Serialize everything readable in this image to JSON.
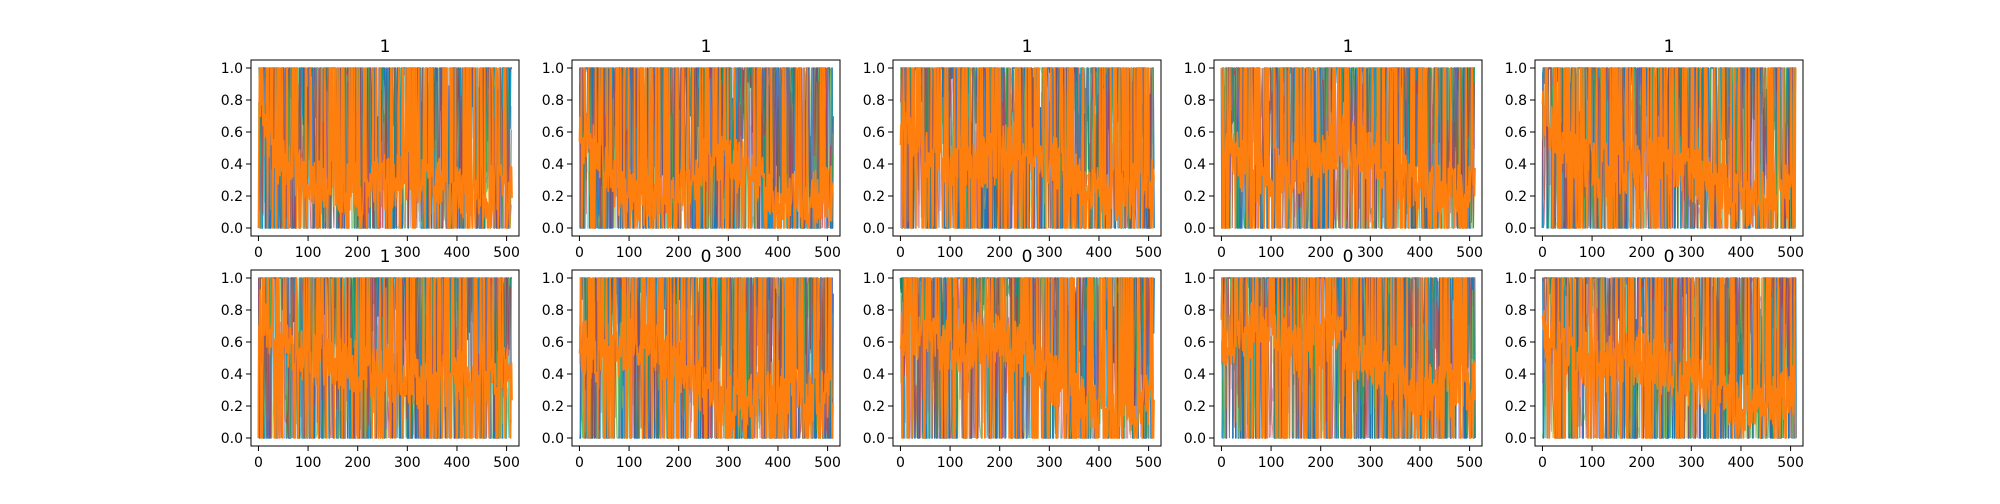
{
  "chart_data": [
    {
      "type": "line",
      "title": "1",
      "xlim": [
        -15,
        525
      ],
      "ylim": [
        -0.05,
        1.05
      ],
      "xticks": [
        "0",
        "100",
        "200",
        "300",
        "400",
        "500"
      ],
      "yticks": [
        "0.0",
        "0.2",
        "0.4",
        "0.6",
        "0.8",
        "1.0"
      ],
      "grid": false,
      "colors": {
        "dominant_a": "#1f77b4",
        "dominant_b": "#ff7f0e",
        "accent": [
          "#17becf",
          "#bcbd22",
          "#2ca02c",
          "#9467bd",
          "#d62728"
        ]
      },
      "profile_b": [
        0.7,
        0.45,
        0.35,
        0.3,
        0.26,
        0.24,
        0.27,
        0.3,
        0.34,
        0.28,
        0.22,
        0.2,
        0.24,
        0.3
      ]
    },
    {
      "type": "line",
      "title": "1",
      "xlim": [
        -15,
        525
      ],
      "ylim": [
        -0.05,
        1.05
      ],
      "xticks": [
        "0",
        "100",
        "200",
        "300",
        "400",
        "500"
      ],
      "yticks": [
        "0.0",
        "0.2",
        "0.4",
        "0.6",
        "0.8",
        "1.0"
      ],
      "grid": false,
      "colors": {
        "dominant_a": "#1f77b4",
        "dominant_b": "#ff7f0e",
        "accent": [
          "#17becf",
          "#bcbd22",
          "#2ca02c",
          "#9467bd",
          "#d62728"
        ]
      },
      "profile_b": [
        0.6,
        0.5,
        0.25,
        0.16,
        0.15,
        0.18,
        0.35,
        0.45,
        0.4,
        0.32,
        0.22,
        0.18,
        0.2,
        0.22
      ]
    },
    {
      "type": "line",
      "title": "1",
      "xlim": [
        -15,
        525
      ],
      "ylim": [
        -0.05,
        1.05
      ],
      "xticks": [
        "0",
        "100",
        "200",
        "300",
        "400",
        "500"
      ],
      "yticks": [
        "0.0",
        "0.2",
        "0.4",
        "0.6",
        "0.8",
        "1.0"
      ],
      "grid": false,
      "colors": {
        "dominant_a": "#1f77b4",
        "dominant_b": "#ff7f0e",
        "accent": [
          "#17becf",
          "#bcbd22",
          "#2ca02c",
          "#9467bd",
          "#d62728"
        ]
      },
      "profile_b": [
        0.65,
        0.5,
        0.42,
        0.38,
        0.4,
        0.45,
        0.5,
        0.48,
        0.42,
        0.3,
        0.22,
        0.2,
        0.24,
        0.3
      ]
    },
    {
      "type": "line",
      "title": "1",
      "xlim": [
        -15,
        525
      ],
      "ylim": [
        -0.05,
        1.05
      ],
      "xticks": [
        "0",
        "100",
        "200",
        "300",
        "400",
        "500"
      ],
      "yticks": [
        "0.0",
        "0.2",
        "0.4",
        "0.6",
        "0.8",
        "1.0"
      ],
      "grid": false,
      "colors": {
        "dominant_a": "#1f77b4",
        "dominant_b": "#ff7f0e",
        "accent": [
          "#17becf",
          "#bcbd22",
          "#2ca02c",
          "#9467bd",
          "#d62728"
        ]
      },
      "profile_b": [
        0.6,
        0.4,
        0.3,
        0.34,
        0.38,
        0.45,
        0.55,
        0.5,
        0.42,
        0.35,
        0.28,
        0.25,
        0.25,
        0.3
      ]
    },
    {
      "type": "line",
      "title": "1",
      "xlim": [
        -15,
        525
      ],
      "ylim": [
        -0.05,
        1.05
      ],
      "xticks": [
        "0",
        "100",
        "200",
        "300",
        "400",
        "500"
      ],
      "yticks": [
        "0.0",
        "0.2",
        "0.4",
        "0.6",
        "0.8",
        "1.0"
      ],
      "grid": false,
      "colors": {
        "dominant_a": "#1f77b4",
        "dominant_b": "#ff7f0e",
        "accent": [
          "#17becf",
          "#bcbd22",
          "#2ca02c",
          "#9467bd",
          "#d62728"
        ]
      },
      "profile_b": [
        0.7,
        0.5,
        0.4,
        0.35,
        0.38,
        0.42,
        0.4,
        0.38,
        0.32,
        0.25,
        0.2,
        0.18,
        0.2,
        0.25
      ]
    },
    {
      "type": "line",
      "title": "1",
      "xlim": [
        -15,
        525
      ],
      "ylim": [
        -0.05,
        1.05
      ],
      "xticks": [
        "0",
        "100",
        "200",
        "300",
        "400",
        "500"
      ],
      "yticks": [
        "0.0",
        "0.2",
        "0.4",
        "0.6",
        "0.8",
        "1.0"
      ],
      "grid": false,
      "colors": {
        "dominant_a": "#1f77b4",
        "dominant_b": "#ff7f0e",
        "accent": [
          "#17becf",
          "#bcbd22",
          "#2ca02c",
          "#9467bd",
          "#d62728"
        ]
      },
      "profile_b": [
        0.8,
        0.6,
        0.55,
        0.5,
        0.48,
        0.45,
        0.4,
        0.38,
        0.36,
        0.35,
        0.38,
        0.4,
        0.38,
        0.4
      ]
    },
    {
      "type": "line",
      "title": "0",
      "xlim": [
        -15,
        525
      ],
      "ylim": [
        -0.05,
        1.05
      ],
      "xticks": [
        "0",
        "100",
        "200",
        "300",
        "400",
        "500"
      ],
      "yticks": [
        "0.0",
        "0.2",
        "0.4",
        "0.6",
        "0.8",
        "1.0"
      ],
      "grid": false,
      "colors": {
        "dominant_a": "#1f77b4",
        "dominant_b": "#ff7f0e",
        "accent": [
          "#17becf",
          "#bcbd22",
          "#2ca02c",
          "#9467bd",
          "#d62728"
        ]
      },
      "profile_b": [
        0.6,
        0.5,
        0.55,
        0.6,
        0.55,
        0.45,
        0.35,
        0.25,
        0.22,
        0.28,
        0.32,
        0.28,
        0.25,
        0.28
      ]
    },
    {
      "type": "line",
      "title": "0",
      "xlim": [
        -15,
        525
      ],
      "ylim": [
        -0.05,
        1.05
      ],
      "xticks": [
        "0",
        "100",
        "200",
        "300",
        "400",
        "500"
      ],
      "yticks": [
        "0.0",
        "0.2",
        "0.4",
        "0.6",
        "0.8",
        "1.0"
      ],
      "grid": false,
      "colors": {
        "dominant_a": "#1f77b4",
        "dominant_b": "#ff7f0e",
        "accent": [
          "#17becf",
          "#bcbd22",
          "#2ca02c",
          "#9467bd",
          "#d62728"
        ]
      },
      "profile_b": [
        0.7,
        0.65,
        0.6,
        0.58,
        0.62,
        0.6,
        0.55,
        0.5,
        0.35,
        0.25,
        0.2,
        0.18,
        0.22,
        0.25
      ]
    },
    {
      "type": "line",
      "title": "0",
      "xlim": [
        -15,
        525
      ],
      "ylim": [
        -0.05,
        1.05
      ],
      "xticks": [
        "0",
        "100",
        "200",
        "300",
        "400",
        "500"
      ],
      "yticks": [
        "0.0",
        "0.2",
        "0.4",
        "0.6",
        "0.8",
        "1.0"
      ],
      "grid": false,
      "colors": {
        "dominant_a": "#1f77b4",
        "dominant_b": "#ff7f0e",
        "accent": [
          "#17becf",
          "#bcbd22",
          "#2ca02c",
          "#9467bd",
          "#d62728"
        ]
      },
      "profile_b": [
        0.6,
        0.65,
        0.7,
        0.62,
        0.55,
        0.62,
        0.6,
        0.5,
        0.45,
        0.4,
        0.3,
        0.28,
        0.3,
        0.32
      ]
    },
    {
      "type": "line",
      "title": "0",
      "xlim": [
        -15,
        525
      ],
      "ylim": [
        -0.05,
        1.05
      ],
      "xticks": [
        "0",
        "100",
        "200",
        "300",
        "400",
        "500"
      ],
      "yticks": [
        "0.0",
        "0.2",
        "0.4",
        "0.6",
        "0.8",
        "1.0"
      ],
      "grid": false,
      "colors": {
        "dominant_a": "#1f77b4",
        "dominant_b": "#ff7f0e",
        "accent": [
          "#17becf",
          "#bcbd22",
          "#2ca02c",
          "#9467bd",
          "#d62728"
        ]
      },
      "profile_b": [
        0.7,
        0.55,
        0.5,
        0.45,
        0.48,
        0.5,
        0.45,
        0.4,
        0.35,
        0.28,
        0.22,
        0.2,
        0.25,
        0.32
      ]
    }
  ]
}
